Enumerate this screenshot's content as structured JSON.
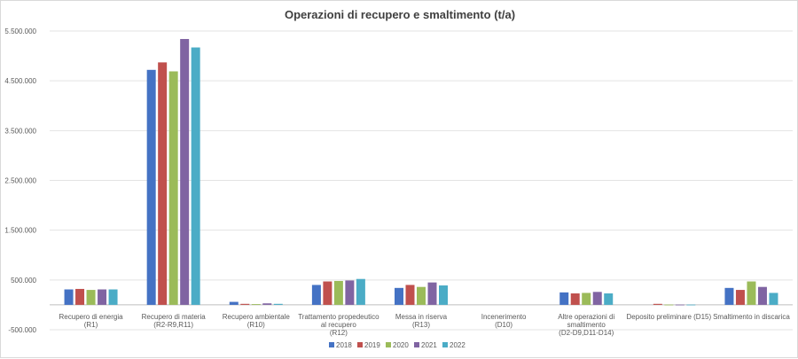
{
  "chart_data": {
    "type": "bar",
    "title": "Operazioni di recupero e smaltimento (t/a)",
    "xlabel": "",
    "ylabel": "",
    "ylim": [
      -500000,
      5500000
    ],
    "yticks": [
      -500000,
      500000,
      1500000,
      2500000,
      3500000,
      4500000,
      5500000
    ],
    "ytick_labels": [
      "-500.000",
      "500.000",
      "1.500.000",
      "2.500.000",
      "3.500.000",
      "4.500.000",
      "5.500.000"
    ],
    "grid": true,
    "legend_position": "bottom",
    "categories": [
      [
        "Recupero di energia",
        "(R1)"
      ],
      [
        "Recupero di materia",
        "(R2-R9,R11)"
      ],
      [
        "Recupero ambientale",
        "(R10)"
      ],
      [
        "Trattamento propedeutico",
        "al recupero",
        "(R12)"
      ],
      [
        "Messa in riserva",
        "(R13)"
      ],
      [
        "Incenerimento",
        "(D10)"
      ],
      [
        "Altre operazioni di",
        "smaltimento",
        "(D2-D9,D11-D14)"
      ],
      [
        "Deposito preliminare (D15)"
      ],
      [
        "Smaltimento in discarica"
      ]
    ],
    "series": [
      {
        "name": "2018",
        "color": "#4472C4",
        "values": [
          310000,
          4720000,
          60000,
          400000,
          340000,
          0,
          250000,
          0,
          340000
        ]
      },
      {
        "name": "2019",
        "color": "#C0504D",
        "values": [
          320000,
          4870000,
          20000,
          470000,
          400000,
          0,
          230000,
          20000,
          300000
        ]
      },
      {
        "name": "2020",
        "color": "#9BBB59",
        "values": [
          300000,
          4690000,
          15000,
          480000,
          360000,
          0,
          240000,
          5000,
          470000
        ]
      },
      {
        "name": "2021",
        "color": "#8064A2",
        "values": [
          310000,
          5340000,
          30000,
          490000,
          450000,
          0,
          260000,
          5000,
          360000
        ]
      },
      {
        "name": "2022",
        "color": "#4BACC6",
        "values": [
          310000,
          5170000,
          20000,
          520000,
          390000,
          0,
          230000,
          5000,
          240000
        ]
      }
    ]
  }
}
